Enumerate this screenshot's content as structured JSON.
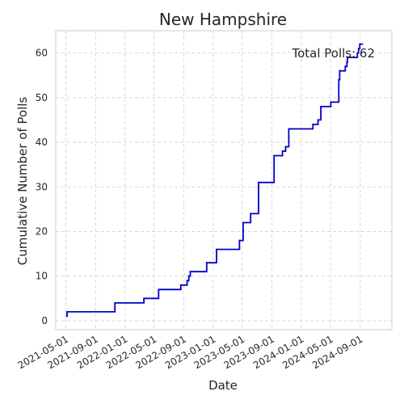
{
  "chart_data": {
    "type": "line",
    "title": "New Hampshire",
    "xlabel": "Date",
    "ylabel": "Cumulative Number of Polls",
    "annotation": "Total Polls: 62",
    "xlim": [
      "2021-03-20",
      "2025-01-10"
    ],
    "ylim": [
      -2,
      65
    ],
    "x_ticks": [
      "2021-05-01",
      "2021-09-01",
      "2022-01-01",
      "2022-05-01",
      "2022-09-01",
      "2023-01-01",
      "2023-05-01",
      "2023-09-01",
      "2024-01-01",
      "2024-05-01",
      "2024-09-01"
    ],
    "y_ticks": [
      0,
      10,
      20,
      30,
      40,
      50,
      60
    ],
    "grid": true,
    "series": [
      {
        "color": "#0000cc",
        "step": true,
        "points": [
          [
            "2021-05-04",
            1
          ],
          [
            "2021-05-06",
            2
          ],
          [
            "2021-11-20",
            4
          ],
          [
            "2022-03-20",
            5
          ],
          [
            "2022-05-20",
            7
          ],
          [
            "2022-08-20",
            8
          ],
          [
            "2022-09-15",
            9
          ],
          [
            "2022-09-22",
            10
          ],
          [
            "2022-09-28",
            11
          ],
          [
            "2022-12-05",
            13
          ],
          [
            "2023-01-15",
            16
          ],
          [
            "2023-04-20",
            18
          ],
          [
            "2023-05-05",
            22
          ],
          [
            "2023-06-05",
            24
          ],
          [
            "2023-07-08",
            31
          ],
          [
            "2023-09-10",
            37
          ],
          [
            "2023-10-15",
            38
          ],
          [
            "2023-10-28",
            39
          ],
          [
            "2023-11-10",
            43
          ],
          [
            "2024-02-18",
            44
          ],
          [
            "2024-03-10",
            45
          ],
          [
            "2024-03-22",
            48
          ],
          [
            "2024-05-02",
            49
          ],
          [
            "2024-06-04",
            54
          ],
          [
            "2024-06-08",
            56
          ],
          [
            "2024-07-01",
            57
          ],
          [
            "2024-07-08",
            58
          ],
          [
            "2024-07-10",
            59
          ],
          [
            "2024-08-20",
            60
          ],
          [
            "2024-08-25",
            61
          ],
          [
            "2024-08-30",
            62
          ],
          [
            "2024-09-10",
            62
          ]
        ]
      }
    ]
  }
}
